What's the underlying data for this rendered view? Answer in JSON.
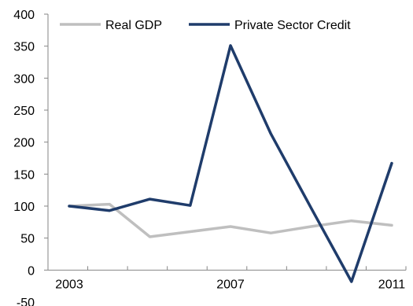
{
  "chart_data": {
    "type": "line",
    "x": [
      2003,
      2004,
      2005,
      2006,
      2007,
      2008,
      2009,
      2010,
      2011
    ],
    "x_tick_labels": [
      "2003",
      "2007",
      "2011"
    ],
    "y_ticks": [
      -50,
      0,
      50,
      100,
      150,
      200,
      250,
      300,
      350,
      400
    ],
    "y_tick_labels": [
      "-50",
      "0",
      "50",
      "100",
      "150",
      "200",
      "250",
      "300",
      "350",
      "400"
    ],
    "ylim": [
      -50,
      400
    ],
    "grid": false,
    "legend_position": "top",
    "title": "",
    "xlabel": "",
    "ylabel": "",
    "series": [
      {
        "name": "Real GDP",
        "color": "#bfbfbf",
        "values": [
          100,
          103,
          52,
          60,
          68,
          58,
          68,
          77,
          70
        ]
      },
      {
        "name": "Private Sector Credit",
        "color": "#1f3c6b",
        "values": [
          100,
          93,
          111,
          101,
          351,
          213,
          97,
          -18,
          167
        ]
      }
    ]
  }
}
